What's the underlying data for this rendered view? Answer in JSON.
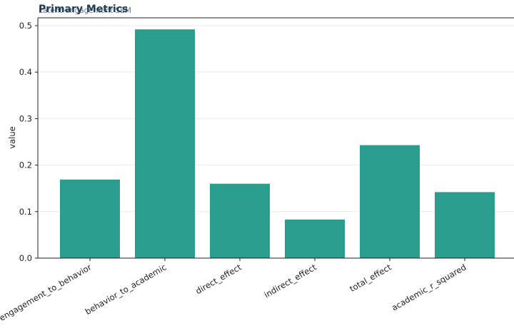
{
  "chart_data": {
    "type": "bar",
    "title": "Primary Metrics",
    "subtitle": "Latent-engagement SEM",
    "xlabel": "",
    "ylabel": "value",
    "categories": [
      "engagement_to_behavior",
      "behavior_to_academic",
      "direct_effect",
      "indirect_effect",
      "total_effect",
      "academic_r_squared"
    ],
    "values": [
      0.169,
      0.492,
      0.16,
      0.083,
      0.243,
      0.142
    ],
    "ylim": [
      0,
      0.5168
    ],
    "yticks": [
      "0.0",
      "0.1",
      "0.2",
      "0.3",
      "0.4",
      "0.5"
    ],
    "grid": "horizontal",
    "bar_color": "#2a9d8f",
    "legend": "none"
  }
}
